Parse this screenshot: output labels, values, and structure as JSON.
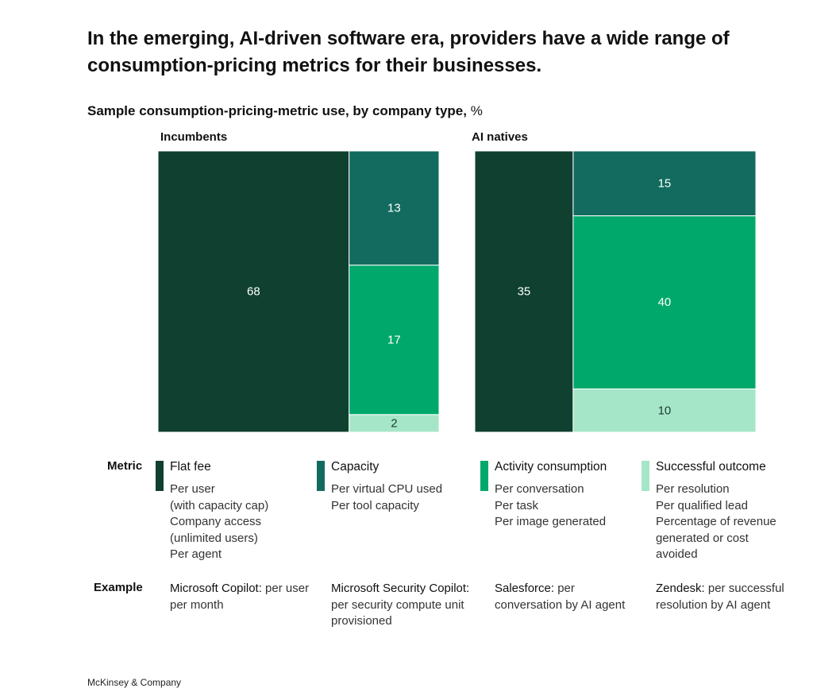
{
  "title": "In the emerging, AI-driven software era, providers have a wide range of consumption-pricing metrics for their businesses.",
  "subtitle": "Sample consumption-pricing-metric use, by company type,",
  "unit": "%",
  "metric_row_label": "Metric",
  "example_row_label": "Example",
  "footer": "McKinsey & Company",
  "colors": {
    "flat_fee": "#0f4030",
    "capacity": "#126b5e",
    "activity": "#00a86b",
    "outcome": "#a6e6c8"
  },
  "chart_data": [
    {
      "type": "treemap",
      "title": "Incumbents",
      "series": [
        {
          "name": "Flat fee",
          "value": 68
        },
        {
          "name": "Capacity",
          "value": 13
        },
        {
          "name": "Activity consumption",
          "value": 17
        },
        {
          "name": "Successful outcome",
          "value": 2
        }
      ]
    },
    {
      "type": "treemap",
      "title": "AI natives",
      "series": [
        {
          "name": "Flat fee",
          "value": 35
        },
        {
          "name": "Capacity",
          "value": 15
        },
        {
          "name": "Activity consumption",
          "value": 40
        },
        {
          "name": "Successful outcome",
          "value": 10
        }
      ]
    }
  ],
  "legend": [
    {
      "name": "Flat fee",
      "color_key": "flat_fee",
      "items": [
        "Per user",
        "(with capacity cap)",
        "Company access",
        "(unlimited users)",
        "Per agent"
      ],
      "example_bold": "Microsoft Copilot:",
      "example_rest": "per user per month"
    },
    {
      "name": "Capacity",
      "color_key": "capacity",
      "items": [
        "Per virtual CPU used",
        "Per tool capacity"
      ],
      "example_bold": "Microsoft Security Copilot:",
      "example_rest": "per security compute unit provisioned"
    },
    {
      "name": "Activity consumption",
      "color_key": "activity",
      "items": [
        "Per conversation",
        "Per task",
        "Per image generated"
      ],
      "example_bold": "Salesforce:",
      "example_rest": "per conversation by AI agent"
    },
    {
      "name": "Successful outcome",
      "color_key": "outcome",
      "items": [
        "Per resolution",
        "Per qualified lead",
        "Percentage of revenue",
        "generated or cost",
        "avoided"
      ],
      "example_bold": "Zendesk:",
      "example_rest": "per successful resolution by AI agent"
    }
  ]
}
